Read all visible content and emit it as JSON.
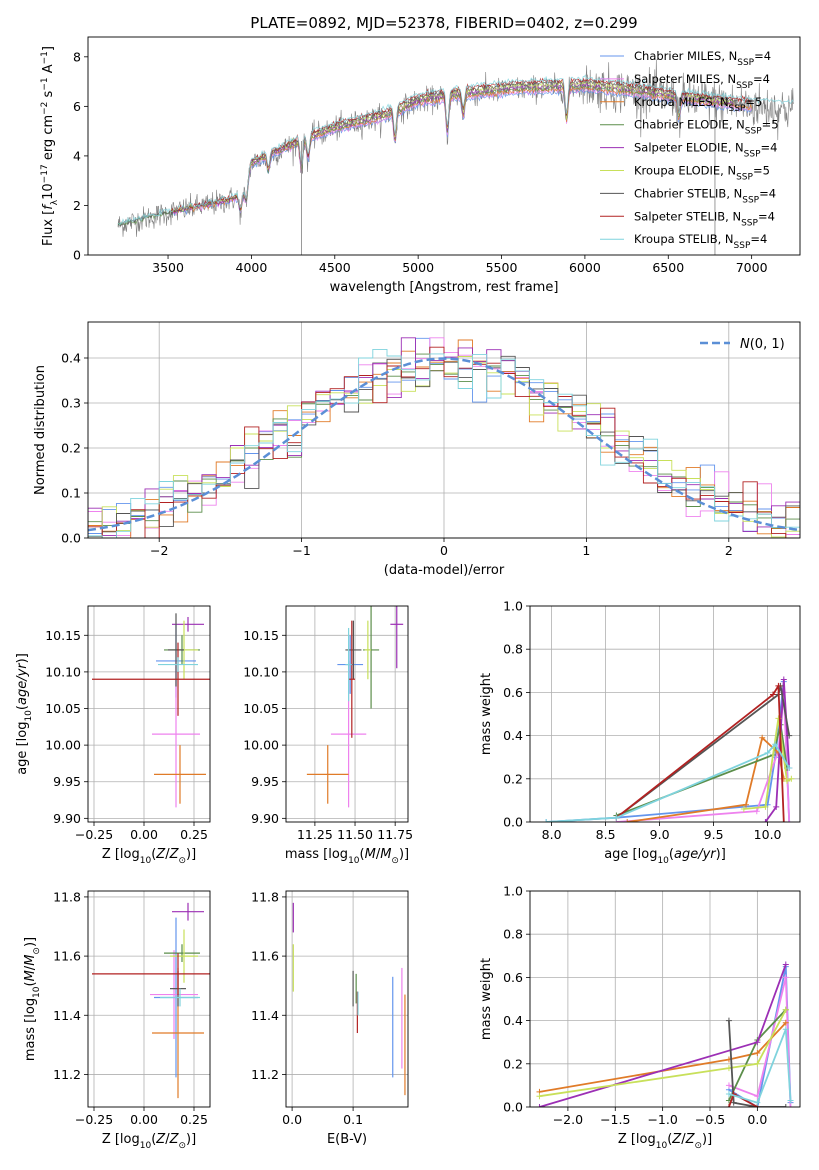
{
  "figure_title": "PLATE=0892, MJD=52378, FIBERID=0402, z=0.299",
  "colors": {
    "Chabrier MILES": "#6495ed",
    "Salpeter MILES": "#ee82ee",
    "Kroupa MILES": "#e07b28",
    "Chabrier ELODIE": "#5b8e4a",
    "Salpeter ELODIE": "#9c2fb5",
    "Kroupa ELODIE": "#c8e05a",
    "Chabrier STELIB": "#555555",
    "Salpeter STELIB": "#b22222",
    "Kroupa STELIB": "#7fd3dd",
    "gaussian": "#5b8fd6"
  },
  "chart_data": [
    {
      "id": "spectrum",
      "type": "line",
      "title": "PLATE=0892, MJD=52378, FIBERID=0402, z=0.299",
      "xlabel": "wavelength [Angstrom, rest frame]",
      "ylabel": "Flux [f_λ 10^-17 erg cm^-2 s^-1 A^-1]",
      "xlim": [
        3020,
        7290
      ],
      "ylim": [
        0,
        8.8
      ],
      "xticks": [
        3500,
        4000,
        4500,
        5000,
        5500,
        6000,
        6500,
        7000
      ],
      "yticks": [
        0,
        2,
        4,
        6,
        8
      ],
      "grid": false,
      "legend_position": "upper-right",
      "observed_start": 3200,
      "legend": [
        {
          "label": "Chabrier MILES, N",
          "sub": "SSP",
          "suffix": "=4",
          "color": "#6495ed"
        },
        {
          "label": "Salpeter MILES, N",
          "sub": "SSP",
          "suffix": "=4",
          "color": "#ee82ee"
        },
        {
          "label": "Kroupa MILES, N",
          "sub": "SSP",
          "suffix": "=5",
          "color": "#e07b28"
        },
        {
          "label": "Chabrier ELODIE, N",
          "sub": "SSP",
          "suffix": "=5",
          "color": "#5b8e4a"
        },
        {
          "label": "Salpeter ELODIE, N",
          "sub": "SSP",
          "suffix": "=4",
          "color": "#9c2fb5"
        },
        {
          "label": "Kroupa ELODIE, N",
          "sub": "SSP",
          "suffix": "=5",
          "color": "#c8e05a"
        },
        {
          "label": "Chabrier STELIB, N",
          "sub": "SSP",
          "suffix": "=4",
          "color": "#555555"
        },
        {
          "label": "Salpeter STELIB, N",
          "sub": "SSP",
          "suffix": "=4",
          "color": "#b22222"
        },
        {
          "label": "Kroupa STELIB, N",
          "sub": "SSP",
          "suffix": "=4",
          "color": "#7fd3dd"
        }
      ],
      "continuum": [
        [
          3200,
          1.2
        ],
        [
          3500,
          1.7
        ],
        [
          3800,
          2.1
        ],
        [
          3950,
          2.4
        ],
        [
          4000,
          3.7
        ],
        [
          4300,
          4.6
        ],
        [
          4500,
          5.1
        ],
        [
          4800,
          5.6
        ],
        [
          5000,
          6.2
        ],
        [
          5300,
          6.5
        ],
        [
          5600,
          6.7
        ],
        [
          6000,
          6.8
        ],
        [
          6300,
          6.6
        ],
        [
          6600,
          6.3
        ],
        [
          7000,
          6.0
        ],
        [
          7200,
          5.9
        ]
      ],
      "absorption_lines": [
        [
          3934,
          1.0
        ],
        [
          3969,
          1.0
        ],
        [
          4102,
          0.6
        ],
        [
          4300,
          1.0
        ],
        [
          4340,
          0.7
        ],
        [
          4861,
          0.8
        ],
        [
          5175,
          0.9
        ],
        [
          5270,
          0.5
        ],
        [
          5890,
          0.8
        ],
        [
          6563,
          0.5
        ]
      ]
    },
    {
      "id": "residual-histogram",
      "type": "histogram",
      "xlabel": "(data-model)/error",
      "ylabel": "Normed distribution",
      "xlim": [
        -2.5,
        2.5
      ],
      "ylim": [
        0,
        0.48
      ],
      "xticks": [
        -2,
        -1,
        0,
        1,
        2
      ],
      "yticks": [
        0.0,
        0.1,
        0.2,
        0.3,
        0.4
      ],
      "bin_width": 0.1,
      "grid": true,
      "legend_label": "N(0,1)",
      "series_colors": [
        "#6495ed",
        "#ee82ee",
        "#e07b28",
        "#5b8e4a",
        "#9c2fb5",
        "#c8e05a",
        "#555555",
        "#b22222",
        "#7fd3dd"
      ]
    },
    {
      "id": "age-vs-Z",
      "type": "errorbar",
      "xlabel": "Z [log10(Z/Z⊙)]",
      "ylabel": "age [log10(age/yr)]",
      "xlim": [
        -0.28,
        0.33
      ],
      "ylim": [
        9.895,
        10.19
      ],
      "xticks": [
        -0.25,
        0.0,
        0.25
      ],
      "yticks": [
        9.9,
        9.95,
        10.0,
        10.05,
        10.1,
        10.15
      ],
      "grid": true,
      "points": [
        {
          "x": 0.16,
          "y": 10.115,
          "xerr": 0.1,
          "yerr": 0.05,
          "color": "#6495ed"
        },
        {
          "x": 0.16,
          "y": 10.015,
          "xerr": 0.12,
          "yerr": 0.1,
          "color": "#ee82ee"
        },
        {
          "x": 0.18,
          "y": 9.96,
          "xerr": 0.13,
          "yerr": 0.04,
          "color": "#e07b28"
        },
        {
          "x": 0.19,
          "y": 10.13,
          "xerr": 0.09,
          "yerr": 0.02,
          "color": "#5b8e4a"
        },
        {
          "x": 0.22,
          "y": 10.165,
          "xerr": 0.08,
          "yerr": 0.01,
          "color": "#9c2fb5"
        },
        {
          "x": 0.2,
          "y": 10.13,
          "xerr": 0.07,
          "yerr": 0.04,
          "color": "#c8e05a"
        },
        {
          "x": 0.16,
          "y": 10.13,
          "xerr": 0.04,
          "yerr": 0.05,
          "color": "#555555"
        },
        {
          "x": 0.17,
          "y": 10.09,
          "xerr": 0.43,
          "yerr": 0.05,
          "color": "#b22222"
        },
        {
          "x": 0.17,
          "y": 10.11,
          "xerr": 0.1,
          "yerr": 0.01,
          "color": "#7fd3dd"
        }
      ]
    },
    {
      "id": "age-vs-mass",
      "type": "errorbar",
      "xlabel": "mass [log10(M/M⊙)]",
      "ylabel": "",
      "xlim": [
        11.07,
        11.83
      ],
      "ylim": [
        9.895,
        10.19
      ],
      "xticks": [
        11.25,
        11.5,
        11.75
      ],
      "yticks": [
        9.9,
        9.95,
        10.0,
        10.05,
        10.1,
        10.15
      ],
      "grid": true,
      "points": [
        {
          "x": 11.47,
          "y": 10.11,
          "xerr": 0.08,
          "yerr": 0.04,
          "color": "#6495ed"
        },
        {
          "x": 11.46,
          "y": 10.015,
          "xerr": 0.11,
          "yerr": 0.1,
          "color": "#ee82ee"
        },
        {
          "x": 11.33,
          "y": 9.96,
          "xerr": 0.13,
          "yerr": 0.04,
          "color": "#e07b28"
        },
        {
          "x": 11.6,
          "y": 10.13,
          "xerr": 0.05,
          "yerr": 0.08,
          "color": "#5b8e4a"
        },
        {
          "x": 11.76,
          "y": 10.165,
          "xerr": 0.04,
          "yerr": 0.06,
          "color": "#9c2fb5"
        },
        {
          "x": 11.58,
          "y": 10.13,
          "xerr": 0.02,
          "yerr": 0.04,
          "color": "#c8e05a"
        },
        {
          "x": 11.49,
          "y": 10.13,
          "xerr": 0.05,
          "yerr": 0.04,
          "color": "#555555"
        },
        {
          "x": 11.48,
          "y": 10.09,
          "xerr": 0.02,
          "yerr": 0.08,
          "color": "#b22222"
        },
        {
          "x": 11.46,
          "y": 10.11,
          "xerr": 0.02,
          "yerr": 0.05,
          "color": "#7fd3dd"
        }
      ]
    },
    {
      "id": "mass-weight-vs-age",
      "type": "line",
      "xlabel": "age [log10(age/yr)]",
      "ylabel": "mass weight",
      "xlim": [
        7.8,
        10.3
      ],
      "ylim": [
        0,
        1
      ],
      "xticks": [
        8.0,
        8.5,
        9.0,
        9.5,
        10.0
      ],
      "yticks": [
        0.0,
        0.2,
        0.4,
        0.6,
        0.8,
        1.0
      ],
      "grid": true,
      "series": [
        {
          "color": "#6495ed",
          "x": [
            7.95,
            8.6,
            10.0,
            10.07,
            10.15,
            10.2
          ],
          "y": [
            0.0,
            0.02,
            0.08,
            0.3,
            0.65,
            0.0
          ]
        },
        {
          "color": "#ee82ee",
          "x": [
            8.6,
            9.9,
            10.1,
            10.15,
            10.2
          ],
          "y": [
            0.0,
            0.05,
            0.33,
            0.6,
            0.0
          ]
        },
        {
          "color": "#e07b28",
          "x": [
            8.7,
            9.8,
            9.95,
            10.1,
            10.15
          ],
          "y": [
            0.0,
            0.08,
            0.39,
            0.32,
            0.2
          ]
        },
        {
          "color": "#5b8e4a",
          "x": [
            8.6,
            10.05,
            10.12,
            10.18
          ],
          "y": [
            0.03,
            0.31,
            0.45,
            0.25
          ]
        },
        {
          "color": "#9c2fb5",
          "x": [
            9.98,
            10.08,
            10.15,
            10.2
          ],
          "y": [
            0.0,
            0.07,
            0.66,
            0.25
          ]
        },
        {
          "color": "#c8e05a",
          "x": [
            9.78,
            9.98,
            10.1,
            10.18,
            10.22
          ],
          "y": [
            0.06,
            0.07,
            0.48,
            0.19,
            0.2
          ]
        },
        {
          "color": "#555555",
          "x": [
            8.6,
            10.1,
            10.12,
            10.2
          ],
          "y": [
            0.02,
            0.59,
            0.63,
            0.4
          ]
        },
        {
          "color": "#b22222",
          "x": [
            8.6,
            10.05,
            10.1,
            10.15
          ],
          "y": [
            0.02,
            0.59,
            0.63,
            0.0
          ]
        },
        {
          "color": "#7fd3dd",
          "x": [
            7.95,
            8.6,
            10.0,
            10.07,
            10.2
          ],
          "y": [
            0.0,
            0.02,
            0.32,
            0.36,
            0.25
          ]
        }
      ]
    },
    {
      "id": "mass-vs-Z",
      "type": "errorbar",
      "xlabel": "Z [log10(Z/Z⊙)]",
      "ylabel": "mass [log10(M/M⊙)]",
      "xlim": [
        -0.28,
        0.33
      ],
      "ylim": [
        11.09,
        11.82
      ],
      "xticks": [
        -0.25,
        0.0,
        0.25
      ],
      "yticks": [
        11.2,
        11.4,
        11.6,
        11.8
      ],
      "grid": true,
      "points": [
        {
          "x": 0.16,
          "y": 11.46,
          "xerr": 0.11,
          "yerr": 0.27,
          "color": "#6495ed"
        },
        {
          "x": 0.15,
          "y": 11.47,
          "xerr": 0.12,
          "yerr": 0.15,
          "color": "#ee82ee"
        },
        {
          "x": 0.17,
          "y": 11.34,
          "xerr": 0.13,
          "yerr": 0.22,
          "color": "#e07b28"
        },
        {
          "x": 0.19,
          "y": 11.61,
          "xerr": 0.09,
          "yerr": 0.03,
          "color": "#5b8e4a"
        },
        {
          "x": 0.22,
          "y": 11.75,
          "xerr": 0.08,
          "yerr": 0.03,
          "color": "#9c2fb5"
        },
        {
          "x": 0.2,
          "y": 11.6,
          "xerr": 0.07,
          "yerr": 0.09,
          "color": "#c8e05a"
        },
        {
          "x": 0.17,
          "y": 11.49,
          "xerr": 0.04,
          "yerr": 0.06,
          "color": "#555555"
        },
        {
          "x": 0.17,
          "y": 11.54,
          "xerr": 0.43,
          "yerr": 0.07,
          "color": "#b22222"
        },
        {
          "x": 0.18,
          "y": 11.46,
          "xerr": 0.1,
          "yerr": 0.03,
          "color": "#7fd3dd"
        }
      ]
    },
    {
      "id": "mass-vs-EBV",
      "type": "errorbar",
      "xlabel": "E(B-V)",
      "ylabel": "",
      "xlim": [
        -0.01,
        0.19
      ],
      "ylim": [
        11.09,
        11.82
      ],
      "xticks": [
        0.0,
        0.1
      ],
      "yticks": [
        11.2,
        11.4,
        11.6,
        11.8
      ],
      "grid": true,
      "points": [
        {
          "x": 0.165,
          "y": 11.36,
          "xerr": 0,
          "yerr": 0.17,
          "color": "#6495ed"
        },
        {
          "x": 0.18,
          "y": 11.39,
          "xerr": 0,
          "yerr": 0.17,
          "color": "#ee82ee"
        },
        {
          "x": 0.185,
          "y": 11.3,
          "xerr": 0,
          "yerr": 0.17,
          "color": "#e07b28"
        },
        {
          "x": 0.105,
          "y": 11.49,
          "xerr": 0,
          "yerr": 0.05,
          "color": "#5b8e4a"
        },
        {
          "x": 0.002,
          "y": 11.73,
          "xerr": 0,
          "yerr": 0.05,
          "color": "#9c2fb5"
        },
        {
          "x": 0.002,
          "y": 11.56,
          "xerr": 0,
          "yerr": 0.08,
          "color": "#c8e05a"
        },
        {
          "x": 0.1,
          "y": 11.49,
          "xerr": 0,
          "yerr": 0.06,
          "color": "#555555"
        },
        {
          "x": 0.107,
          "y": 11.41,
          "xerr": 0,
          "yerr": 0.07,
          "color": "#b22222"
        },
        {
          "x": 0.108,
          "y": 11.44,
          "xerr": 0,
          "yerr": 0.04,
          "color": "#7fd3dd"
        }
      ]
    },
    {
      "id": "mass-weight-vs-Z",
      "type": "line",
      "xlabel": "Z [log10(Z/Z⊙)]",
      "ylabel": "mass weight",
      "xlim": [
        -2.4,
        0.45
      ],
      "ylim": [
        0,
        1
      ],
      "xticks": [
        -2.0,
        -1.5,
        -1.0,
        -0.5,
        0.0
      ],
      "yticks": [
        0.0,
        0.2,
        0.4,
        0.6,
        0.8,
        1.0
      ],
      "grid": true,
      "series": [
        {
          "color": "#6495ed",
          "x": [
            -0.3,
            0.0,
            0.3,
            0.35
          ],
          "y": [
            0.08,
            0.0,
            0.65,
            0.02
          ]
        },
        {
          "color": "#ee82ee",
          "x": [
            -0.3,
            0.0,
            0.3,
            0.35
          ],
          "y": [
            0.1,
            0.05,
            0.6,
            0.0
          ]
        },
        {
          "color": "#e07b28",
          "x": [
            -2.3,
            -0.3,
            0.0,
            0.3
          ],
          "y": [
            0.07,
            0.22,
            0.25,
            0.39
          ]
        },
        {
          "color": "#5b8e4a",
          "x": [
            -0.3,
            0.0,
            0.3
          ],
          "y": [
            0.03,
            0.31,
            0.45
          ]
        },
        {
          "color": "#9c2fb5",
          "x": [
            -2.3,
            0.0,
            0.3
          ],
          "y": [
            0.0,
            0.3,
            0.66
          ]
        },
        {
          "color": "#c8e05a",
          "x": [
            -2.3,
            -0.3,
            0.0,
            0.3
          ],
          "y": [
            0.05,
            0.18,
            0.2,
            0.45
          ]
        },
        {
          "color": "#555555",
          "x": [
            -0.3,
            -0.25,
            0.0,
            0.3
          ],
          "y": [
            0.4,
            0.02,
            0.0,
            0.0
          ]
        },
        {
          "color": "#b22222",
          "x": [
            -0.3,
            -0.25,
            0.0
          ],
          "y": [
            0.0,
            0.06,
            0.0
          ]
        },
        {
          "color": "#7fd3dd",
          "x": [
            -0.3,
            0.0,
            0.3,
            0.35
          ],
          "y": [
            0.06,
            0.02,
            0.36,
            0.03
          ]
        }
      ]
    }
  ]
}
